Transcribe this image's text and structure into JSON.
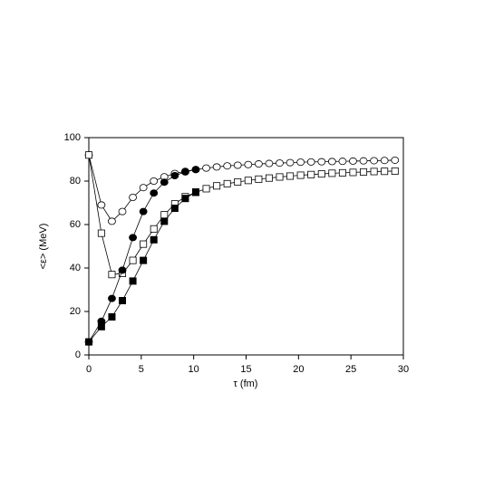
{
  "chart_data": {
    "type": "line",
    "xlabel": "τ (fm)",
    "ylabel": "<ε> (MeV)",
    "xlim": [
      0,
      30
    ],
    "xticks": [
      0,
      5,
      10,
      15,
      20,
      25,
      30
    ],
    "ylim": [
      0,
      100
    ],
    "yticks": [
      0,
      20,
      40,
      60,
      80,
      100
    ],
    "series": [
      {
        "color": "#000000",
        "marker": "circle",
        "marker_fill": "#ffffff",
        "x": [
          0,
          1.2,
          2.2,
          3.2,
          4.2,
          5.2,
          6.2,
          7.2,
          8.2,
          9.2,
          10.2,
          11.2,
          12.2,
          13.2,
          14.2,
          15.2,
          16.2,
          17.2,
          18.2,
          19.2,
          20.2,
          21.2,
          22.2,
          23.2,
          24.2,
          25.2,
          26.2,
          27.2,
          28.2,
          29.2
        ],
        "values": [
          92,
          69,
          61.5,
          66,
          72.5,
          77,
          80,
          82,
          83.5,
          84.5,
          85.3,
          86,
          86.5,
          87,
          87.3,
          87.6,
          87.9,
          88.1,
          88.3,
          88.5,
          88.7,
          88.8,
          88.9,
          89,
          89.1,
          89.2,
          89.3,
          89.4,
          89.5,
          89.6
        ]
      },
      {
        "color": "#000000",
        "marker": "square",
        "marker_fill": "#ffffff",
        "x": [
          0,
          1.2,
          2.2,
          3.2,
          4.2,
          5.2,
          6.2,
          7.2,
          8.2,
          9.2,
          10.2,
          11.2,
          12.2,
          13.2,
          14.2,
          15.2,
          16.2,
          17.2,
          18.2,
          19.2,
          20.2,
          21.2,
          22.2,
          23.2,
          24.2,
          25.2,
          26.2,
          27.2,
          28.2,
          29.2
        ],
        "values": [
          92,
          56,
          37,
          37.5,
          43.5,
          51,
          58,
          64.5,
          69.5,
          72.8,
          74.8,
          76.5,
          77.8,
          78.8,
          79.6,
          80.3,
          80.9,
          81.4,
          81.9,
          82.3,
          82.7,
          83,
          83.3,
          83.6,
          83.8,
          84,
          84.2,
          84.4,
          84.5,
          84.6
        ]
      },
      {
        "color": "#000000",
        "marker": "circle",
        "marker_fill": "#000000",
        "x": [
          0,
          1.2,
          2.2,
          3.2,
          4.2,
          5.2,
          6.2,
          7.2,
          8.2,
          9.2,
          10.2
        ],
        "values": [
          6,
          15.5,
          26,
          39,
          54,
          66,
          74.5,
          79.5,
          82.5,
          84.2,
          85.3
        ]
      },
      {
        "color": "#000000",
        "marker": "square",
        "marker_fill": "#000000",
        "x": [
          0,
          1.2,
          2.2,
          3.2,
          4.2,
          5.2,
          6.2,
          7.2,
          8.2,
          9.2,
          10.2
        ],
        "values": [
          6,
          13,
          17.5,
          25,
          34,
          43.5,
          53,
          61.5,
          67.5,
          72,
          75
        ]
      }
    ]
  }
}
